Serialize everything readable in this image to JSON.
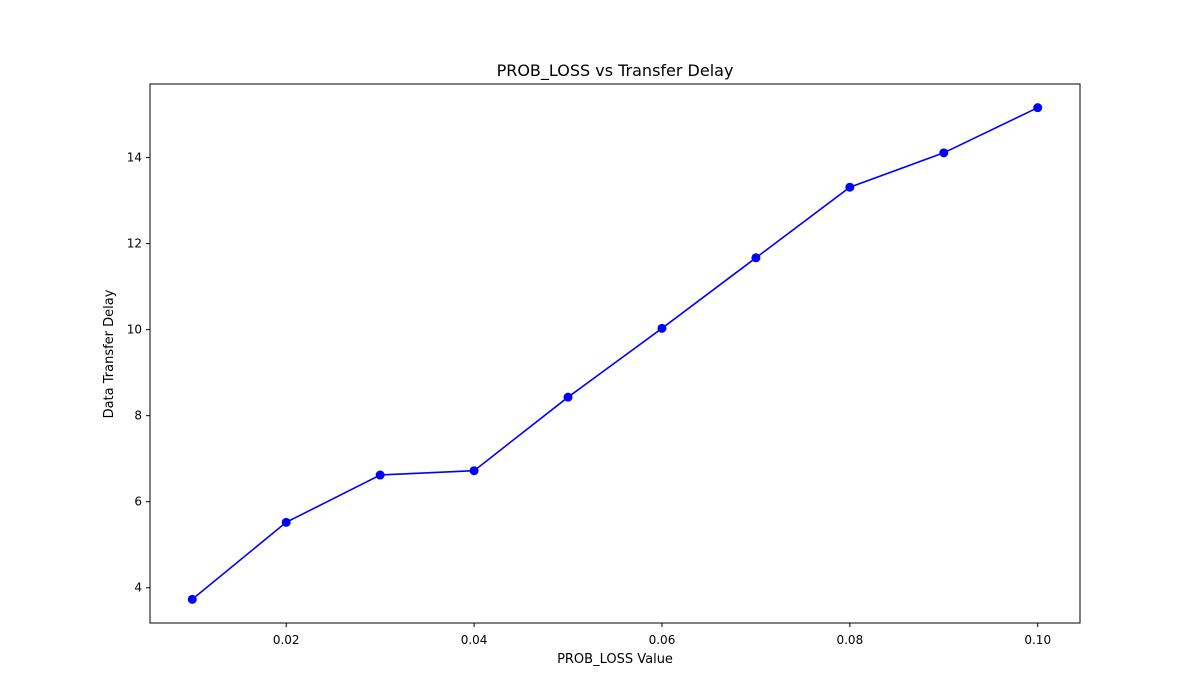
{
  "chart_data": {
    "type": "line",
    "title": "PROB_LOSS vs Transfer Delay",
    "xlabel": "PROB_LOSS Value",
    "ylabel": "Data Transfer Delay",
    "x": [
      0.01,
      0.02,
      0.03,
      0.04,
      0.05,
      0.06,
      0.07,
      0.08,
      0.09,
      0.1
    ],
    "series": [
      {
        "values": [
          3.73,
          5.52,
          6.62,
          6.72,
          8.43,
          10.03,
          11.67,
          13.31,
          14.11,
          15.16
        ],
        "color": "#0000ff",
        "marker": "circle"
      }
    ],
    "xlim": [
      0.0055,
      0.1045
    ],
    "ylim": [
      3.18,
      15.71
    ],
    "xticks": [
      0.02,
      0.04,
      0.06,
      0.08,
      0.1
    ],
    "xtick_labels": [
      "0.02",
      "0.04",
      "0.06",
      "0.08",
      "0.10"
    ],
    "yticks": [
      4,
      6,
      8,
      10,
      12,
      14
    ],
    "ytick_labels": [
      "4",
      "6",
      "8",
      "10",
      "12",
      "14"
    ],
    "grid": false,
    "legend": "none"
  }
}
